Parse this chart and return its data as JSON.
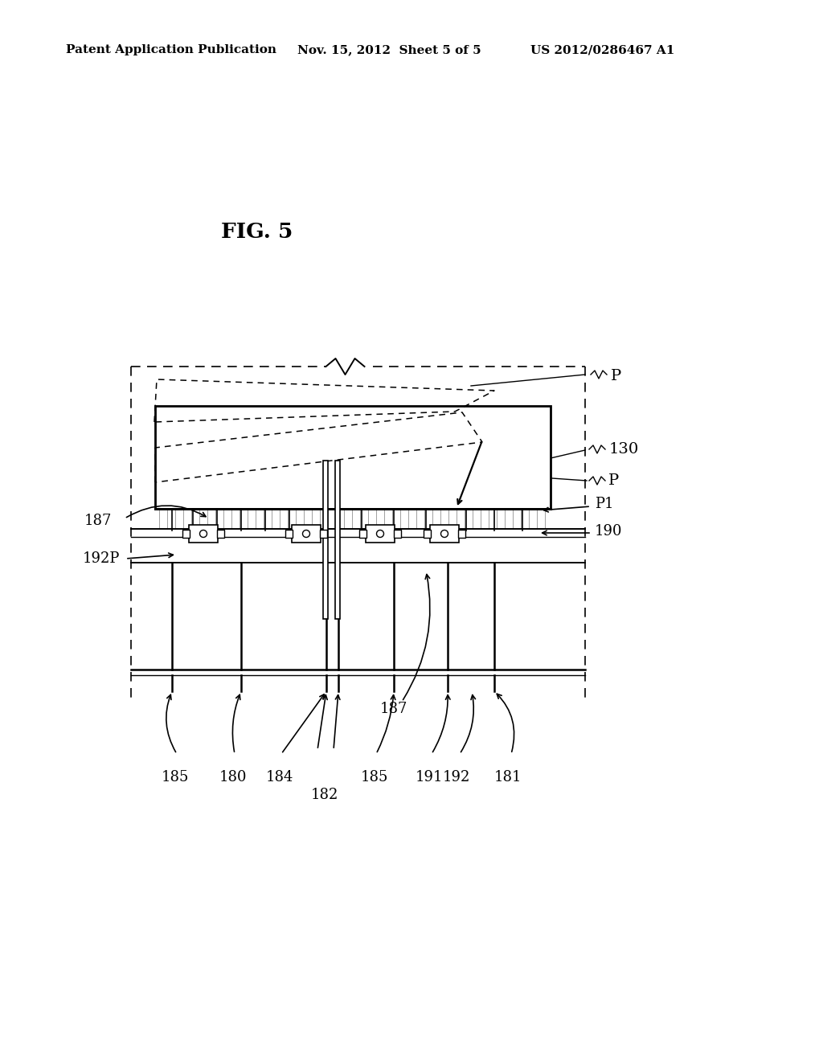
{
  "bg_color": "#ffffff",
  "lc": "#000000",
  "header_left": "Patent Application Publication",
  "header_mid": "Nov. 15, 2012  Sheet 5 of 5",
  "header_right": "US 2012/0286467 A1",
  "fig_label": "FIG. 5",
  "label_P_top": "P",
  "label_P_bot": "P",
  "label_P1": "P1",
  "label_130": "130",
  "label_187_left": "187",
  "label_187_mid": "187",
  "label_190": "190",
  "label_192P": "192P",
  "label_185a": "185",
  "label_180": "180",
  "label_184": "184",
  "label_182": "182",
  "label_185b": "185",
  "label_191": "191",
  "label_192": "192",
  "label_181": "181"
}
